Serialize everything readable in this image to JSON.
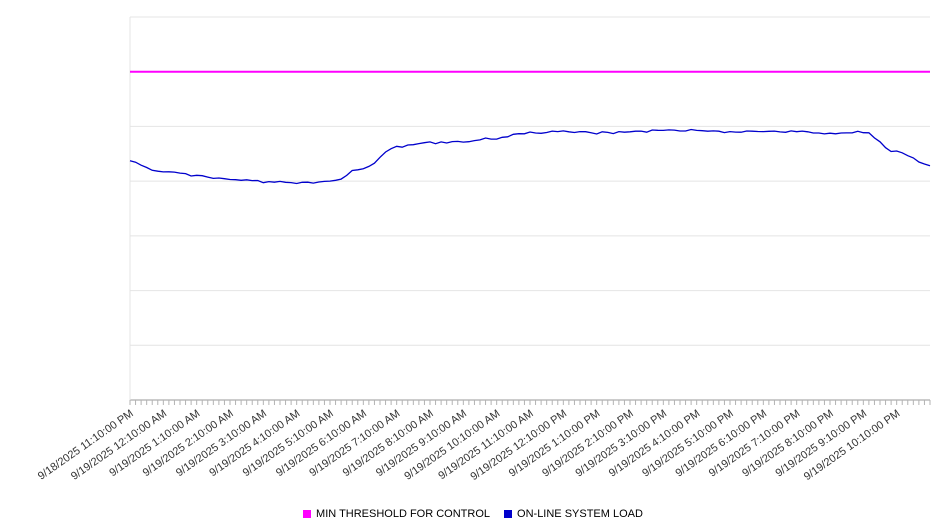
{
  "chart_data": {
    "type": "line",
    "title": "",
    "xlabel": "",
    "ylabel": "",
    "ylim": [
      0,
      70
    ],
    "grid_step": 10,
    "grid": "horizontal",
    "legend_position": "bottom-center",
    "x_labels": [
      "9/18/2025 11:10:00 PM",
      "9/19/2025 12:10:00 AM",
      "9/19/2025 1:10:00 AM",
      "9/19/2025 2:10:00 AM",
      "9/19/2025 3:10:00 AM",
      "9/19/2025 4:10:00 AM",
      "9/19/2025 5:10:00 AM",
      "9/19/2025 6:10:00 AM",
      "9/19/2025 7:10:00 AM",
      "9/19/2025 8:10:00 AM",
      "9/19/2025 9:10:00 AM",
      "9/19/2025 10:10:00 AM",
      "9/19/2025 11:10:00 AM",
      "9/19/2025 12:10:00 PM",
      "9/19/2025 1:10:00 PM",
      "9/19/2025 2:10:00 PM",
      "9/19/2025 3:10:00 PM",
      "9/19/2025 4:10:00 PM",
      "9/19/2025 5:10:00 PM",
      "9/19/2025 6:10:00 PM",
      "9/19/2025 7:10:00 PM",
      "9/19/2025 8:10:00 PM",
      "9/19/2025 9:10:00 PM",
      "9/19/2025 10:10:00 PM"
    ],
    "series": [
      {
        "name": "MIN THRESHOLD FOR CONTROL",
        "color": "#ff00ff",
        "style": "constant",
        "value": 60
      },
      {
        "name": "ON-LINE SYSTEM LOAD",
        "color": "#0000cc",
        "style": "line",
        "values": [
          43.5,
          41.7,
          41.0,
          40.4,
          39.9,
          39.7,
          39.8,
          42.4,
          46.3,
          47.0,
          47.3,
          47.9,
          48.8,
          49.2,
          48.8,
          49.0,
          49.2,
          49.3,
          49.0,
          49.1,
          49.0,
          48.6,
          49.0,
          45.3,
          42.8
        ]
      }
    ]
  },
  "legend": {
    "items": [
      {
        "label": "MIN THRESHOLD FOR CONTROL",
        "color": "#ff00ff"
      },
      {
        "label": "ON-LINE SYSTEM LOAD",
        "color": "#0000cc"
      }
    ]
  },
  "colors": {
    "grid": "#e4e4e4",
    "axis": "#9a9a9a",
    "tick": "#b3b3b3",
    "label": "#333333",
    "background": "#ffffff"
  }
}
